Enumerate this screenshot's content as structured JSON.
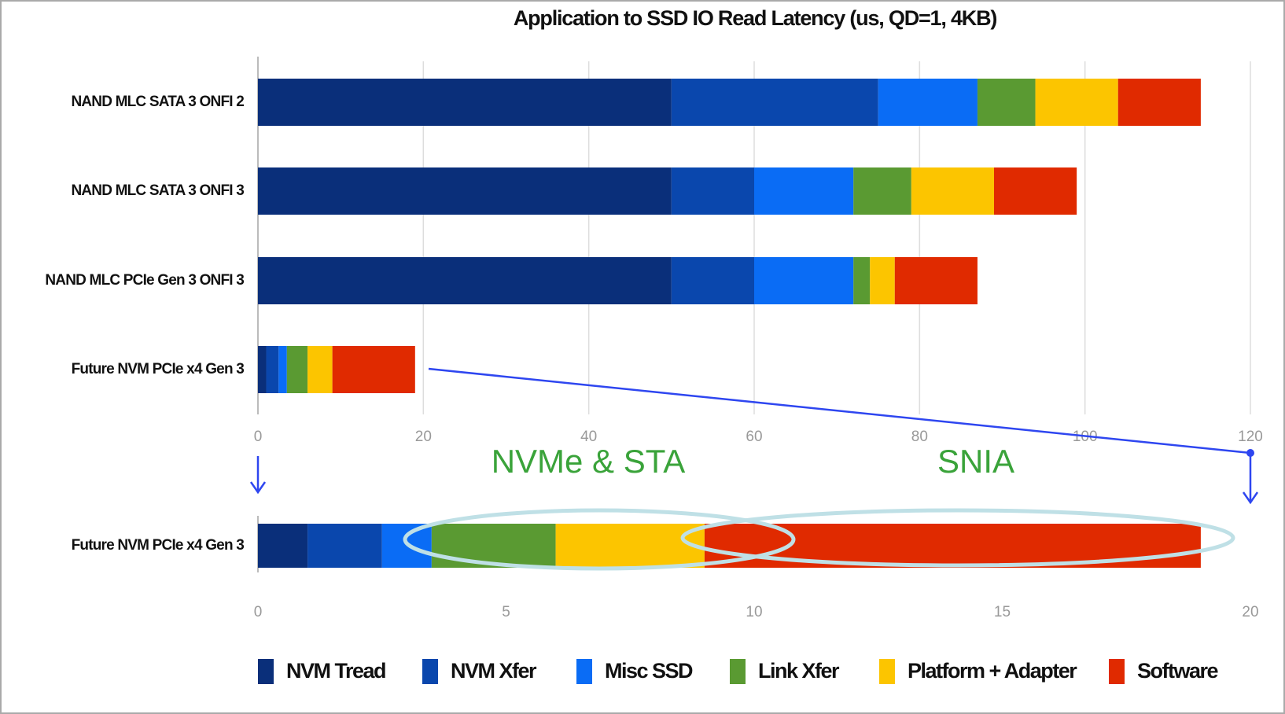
{
  "chart_data": [
    {
      "type": "stacked-bar-horizontal",
      "title": "Application to SSD IO Read Latency (us, QD=1, 4KB)",
      "categories": [
        "NAND MLC SATA 3 ONFI 2",
        "NAND MLC SATA 3 ONFI 3",
        "NAND MLC PCIe Gen 3 ONFI 3",
        "Future NVM PCIe x4 Gen 3"
      ],
      "series": [
        {
          "name": "NVM Tread",
          "color": "#0a2f7a",
          "values": [
            50,
            50,
            50,
            1
          ]
        },
        {
          "name": "NVM Xfer",
          "color": "#0a47ad",
          "values": [
            25,
            10,
            10,
            1.5
          ]
        },
        {
          "name": "Misc SSD",
          "color": "#0a6cf5",
          "values": [
            12,
            12,
            12,
            1
          ]
        },
        {
          "name": "Link Xfer",
          "color": "#5a9a32",
          "values": [
            7,
            7,
            2,
            2.5
          ]
        },
        {
          "name": "Platform + Adapter",
          "color": "#fcc500",
          "values": [
            10,
            10,
            3,
            3
          ]
        },
        {
          "name": "Software",
          "color": "#e02a00",
          "values": [
            10,
            10,
            10,
            10
          ]
        }
      ],
      "xlim": [
        0,
        120
      ],
      "xticks": [
        0,
        20,
        40,
        60,
        80,
        100,
        120
      ],
      "grid": true,
      "legend": "bottom"
    },
    {
      "type": "stacked-bar-horizontal",
      "categories": [
        "Future NVM PCIe x4 Gen 3"
      ],
      "series": [
        {
          "color": "#0a2f7a",
          "values": [
            1
          ]
        },
        {
          "color": "#0a47ad",
          "values": [
            1.5
          ]
        },
        {
          "color": "#0a6cf5",
          "values": [
            1
          ]
        },
        {
          "color": "#5a9a32",
          "values": [
            2.5
          ]
        },
        {
          "color": "#fcc500",
          "values": [
            3
          ]
        },
        {
          "color": "#e02a00",
          "values": [
            10
          ]
        }
      ],
      "xlim": [
        0,
        20
      ],
      "xticks": [
        0,
        5,
        10,
        15,
        20
      ],
      "grid": false,
      "annotations": [
        "NVMe & STA",
        "SNIA"
      ]
    }
  ]
}
